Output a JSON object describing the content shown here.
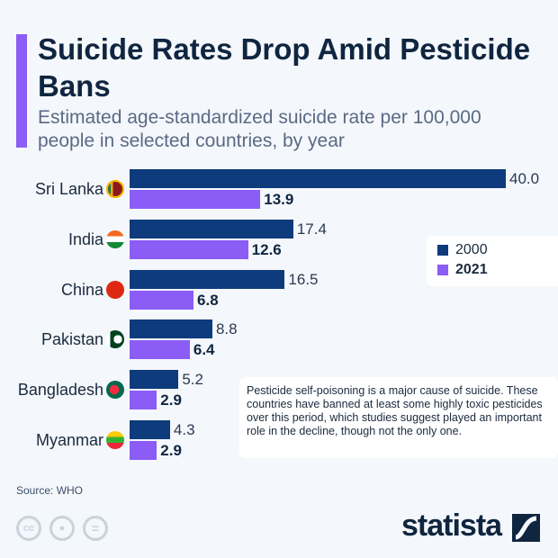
{
  "header": {
    "title": "Suicide Rates Drop Amid Pesticide Bans",
    "subtitle": "Estimated age-standardized suicide rate per 100,000 people in selected countries, by year"
  },
  "chart_data": {
    "type": "bar",
    "orientation": "horizontal",
    "categories": [
      "Sri Lanka",
      "India",
      "China",
      "Pakistan",
      "Bangladesh",
      "Myanmar"
    ],
    "series": [
      {
        "name": "2000",
        "color": "#0d3b7c",
        "values": [
          40.0,
          17.4,
          16.5,
          8.8,
          5.2,
          4.3
        ],
        "labels": [
          "40.0",
          "17.4",
          "16.5",
          "8.8",
          "5.2",
          "4.3"
        ]
      },
      {
        "name": "2021",
        "color": "#8b5cf6",
        "values": [
          13.9,
          12.6,
          6.8,
          6.4,
          2.9,
          2.9
        ],
        "labels": [
          "13.9",
          "12.6",
          "6.8",
          "6.4",
          "2.9",
          "2.9"
        ]
      }
    ],
    "xlim": [
      0,
      40
    ],
    "grid": false,
    "legend": "right"
  },
  "flags": [
    "sri-lanka-flag-icon",
    "india-flag-icon",
    "china-flag-icon",
    "pakistan-flag-icon",
    "bangladesh-flag-icon",
    "myanmar-flag-icon"
  ],
  "note": "Pesticide self-poisoning is a major cause of suicide. These countries have banned at least some highly toxic pesticides over this period, which studies suggest played an important role in the decline, though not the only one.",
  "footer": {
    "source": "Source: WHO",
    "cc": "cc",
    "logo": "statista"
  }
}
